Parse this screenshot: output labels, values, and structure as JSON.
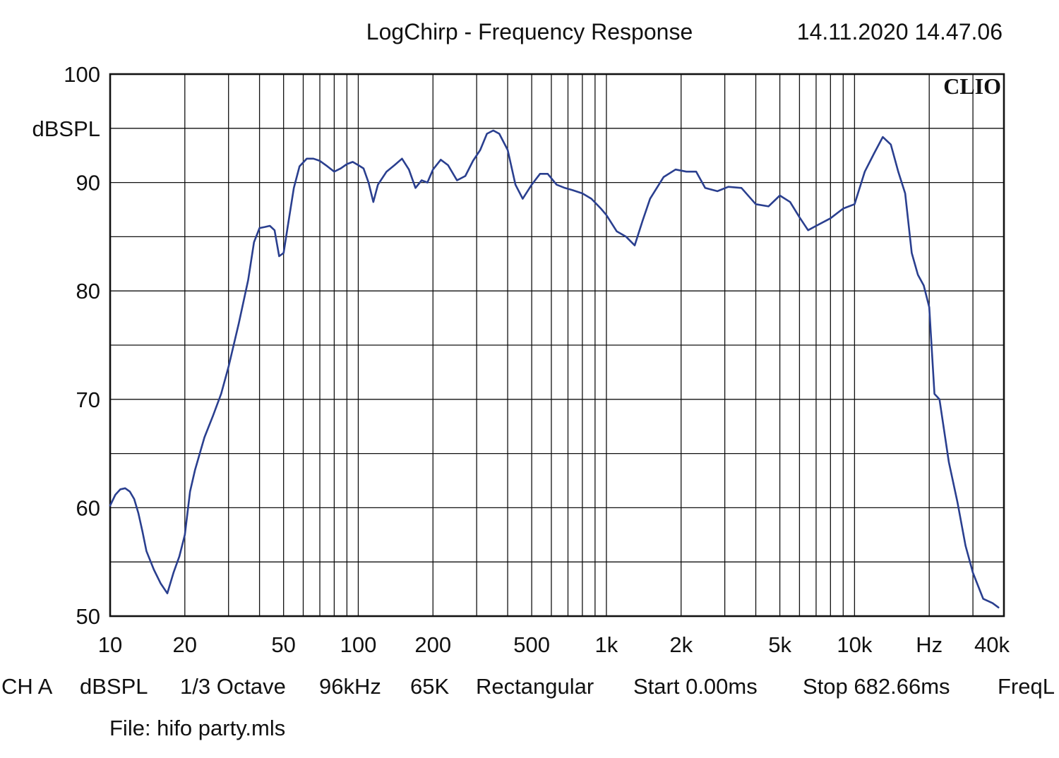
{
  "header": {
    "title": "LogChirp - Frequency Response",
    "datetime": "14.11.2020 14.47.06",
    "brand": "CLIO"
  },
  "footer": {
    "channel": "CH A",
    "unit": "dBSPL",
    "smoothing": "1/3 Octave",
    "sample_rate": "96kHz",
    "size": "65K",
    "window": "Rectangular",
    "start": "Start 0.00ms",
    "stop": "Stop 682.66ms",
    "freq": "FreqL",
    "file": "File: hifo party.mls"
  },
  "chart_data": {
    "type": "line",
    "title": "LogChirp - Frequency Response",
    "xlabel": "Hz",
    "ylabel": "dBSPL",
    "x_scale": "log",
    "xlim": [
      10,
      40000
    ],
    "ylim": [
      50,
      100
    ],
    "grid": true,
    "x_ticks": [
      {
        "value": 10,
        "label": "10"
      },
      {
        "value": 20,
        "label": "20"
      },
      {
        "value": 50,
        "label": "50"
      },
      {
        "value": 100,
        "label": "100"
      },
      {
        "value": 200,
        "label": "200"
      },
      {
        "value": 500,
        "label": "500"
      },
      {
        "value": 1000,
        "label": "1k"
      },
      {
        "value": 2000,
        "label": "2k"
      },
      {
        "value": 5000,
        "label": "5k"
      },
      {
        "value": 10000,
        "label": "10k"
      },
      {
        "value": 20000,
        "label": "Hz"
      },
      {
        "value": 40000,
        "label": "40k"
      }
    ],
    "y_ticks": [
      {
        "value": 100,
        "label": "100"
      },
      {
        "value": 95,
        "label": "dBSPL"
      },
      {
        "value": 90,
        "label": "90"
      },
      {
        "value": 80,
        "label": "80"
      },
      {
        "value": 70,
        "label": "70"
      },
      {
        "value": 60,
        "label": "60"
      },
      {
        "value": 50,
        "label": "50"
      }
    ],
    "series": [
      {
        "color": "#2a3f8f",
        "x": [
          10,
          10.5,
          11,
          11.5,
          12,
          12.5,
          13,
          13.5,
          14,
          15,
          16,
          17,
          18,
          19,
          20,
          21,
          22,
          24,
          26,
          28,
          30,
          33,
          36,
          38,
          40,
          42,
          44,
          46,
          48,
          50,
          52,
          55,
          58,
          62,
          66,
          70,
          75,
          80,
          85,
          90,
          95,
          100,
          105,
          110,
          115,
          120,
          130,
          140,
          150,
          160,
          170,
          180,
          190,
          200,
          215,
          230,
          250,
          270,
          290,
          310,
          330,
          350,
          370,
          400,
          430,
          460,
          500,
          540,
          580,
          630,
          680,
          730,
          800,
          870,
          950,
          1000,
          1100,
          1200,
          1300,
          1400,
          1500,
          1700,
          1900,
          2100,
          2300,
          2500,
          2800,
          3100,
          3500,
          4000,
          4500,
          5000,
          5500,
          6000,
          6500,
          7000,
          8000,
          9000,
          10000,
          11000,
          12000,
          13000,
          14000,
          15000,
          16000,
          17000,
          18000,
          19000,
          20000,
          21000,
          22000,
          24000,
          26000,
          28000,
          30000,
          33000,
          36000,
          38000
        ],
        "y": [
          60.2,
          61.2,
          61.7,
          61.8,
          61.5,
          60.8,
          59.5,
          57.8,
          56.0,
          54.3,
          53.0,
          52.1,
          54.0,
          55.5,
          57.5,
          61.5,
          63.5,
          66.5,
          68.5,
          70.5,
          73.0,
          77.0,
          81.0,
          84.5,
          85.8,
          85.9,
          86.0,
          85.6,
          83.2,
          83.5,
          86.0,
          89.5,
          91.5,
          92.2,
          92.2,
          92.0,
          91.5,
          91.0,
          91.3,
          91.7,
          91.9,
          91.6,
          91.3,
          90.0,
          88.2,
          89.8,
          91.0,
          91.6,
          92.2,
          91.2,
          89.5,
          90.2,
          90.0,
          91.2,
          92.1,
          91.6,
          90.2,
          90.6,
          92.0,
          93.0,
          94.5,
          94.8,
          94.5,
          93.0,
          89.8,
          88.5,
          89.8,
          90.8,
          90.8,
          89.8,
          89.5,
          89.3,
          89.0,
          88.5,
          87.6,
          87.0,
          85.5,
          85.0,
          84.2,
          86.5,
          88.5,
          90.5,
          91.2,
          91.0,
          91.0,
          89.5,
          89.2,
          89.6,
          89.5,
          88.0,
          87.8,
          88.8,
          88.2,
          86.8,
          85.6,
          86.0,
          86.7,
          87.6,
          88.0,
          91.0,
          92.7,
          94.2,
          93.5,
          91.0,
          89.0,
          83.5,
          81.5,
          80.5,
          78.5,
          70.5,
          70.0,
          64.2,
          60.5,
          56.5,
          54.0,
          51.6,
          51.2,
          50.8
        ]
      }
    ]
  }
}
